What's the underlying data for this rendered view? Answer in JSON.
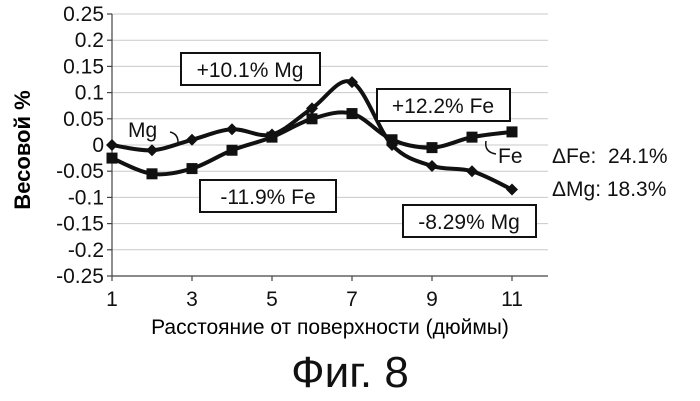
{
  "caption": "Фиг. 8",
  "chart_data": {
    "type": "line",
    "xlabel": "Расстояние от поверхности (дюймы)",
    "ylabel": "Весовой %",
    "x": [
      1,
      2,
      3,
      4,
      5,
      6,
      7,
      8,
      9,
      10,
      11
    ],
    "xticks": [
      "1",
      "3",
      "5",
      "7",
      "9",
      "11"
    ],
    "xlim": [
      1,
      11
    ],
    "ylim": [
      -0.25,
      0.25
    ],
    "yticks": [
      "0.25",
      "0.2",
      "0.15",
      "0.1",
      "0.05",
      "0",
      "-0.05",
      "-0.1",
      "-0.15",
      "-0.2",
      "-0.25"
    ],
    "grid": "horizontal",
    "series": [
      {
        "name": "Mg",
        "marker": "diamond",
        "values": [
          0.0,
          -0.01,
          0.01,
          0.03,
          0.02,
          0.07,
          0.12,
          0.0,
          -0.04,
          -0.05,
          -0.085
        ]
      },
      {
        "name": "Fe",
        "marker": "square",
        "values": [
          -0.025,
          -0.055,
          -0.045,
          -0.01,
          0.015,
          0.05,
          0.06,
          0.01,
          -0.005,
          0.015,
          0.025
        ]
      }
    ],
    "annotations": [
      "+10.1% Mg",
      "+12.2% Fe",
      "-11.9% Fe",
      "-8.29% Mg",
      "ΔFe:  24.1%",
      "ΔMg: 18.3%"
    ]
  }
}
